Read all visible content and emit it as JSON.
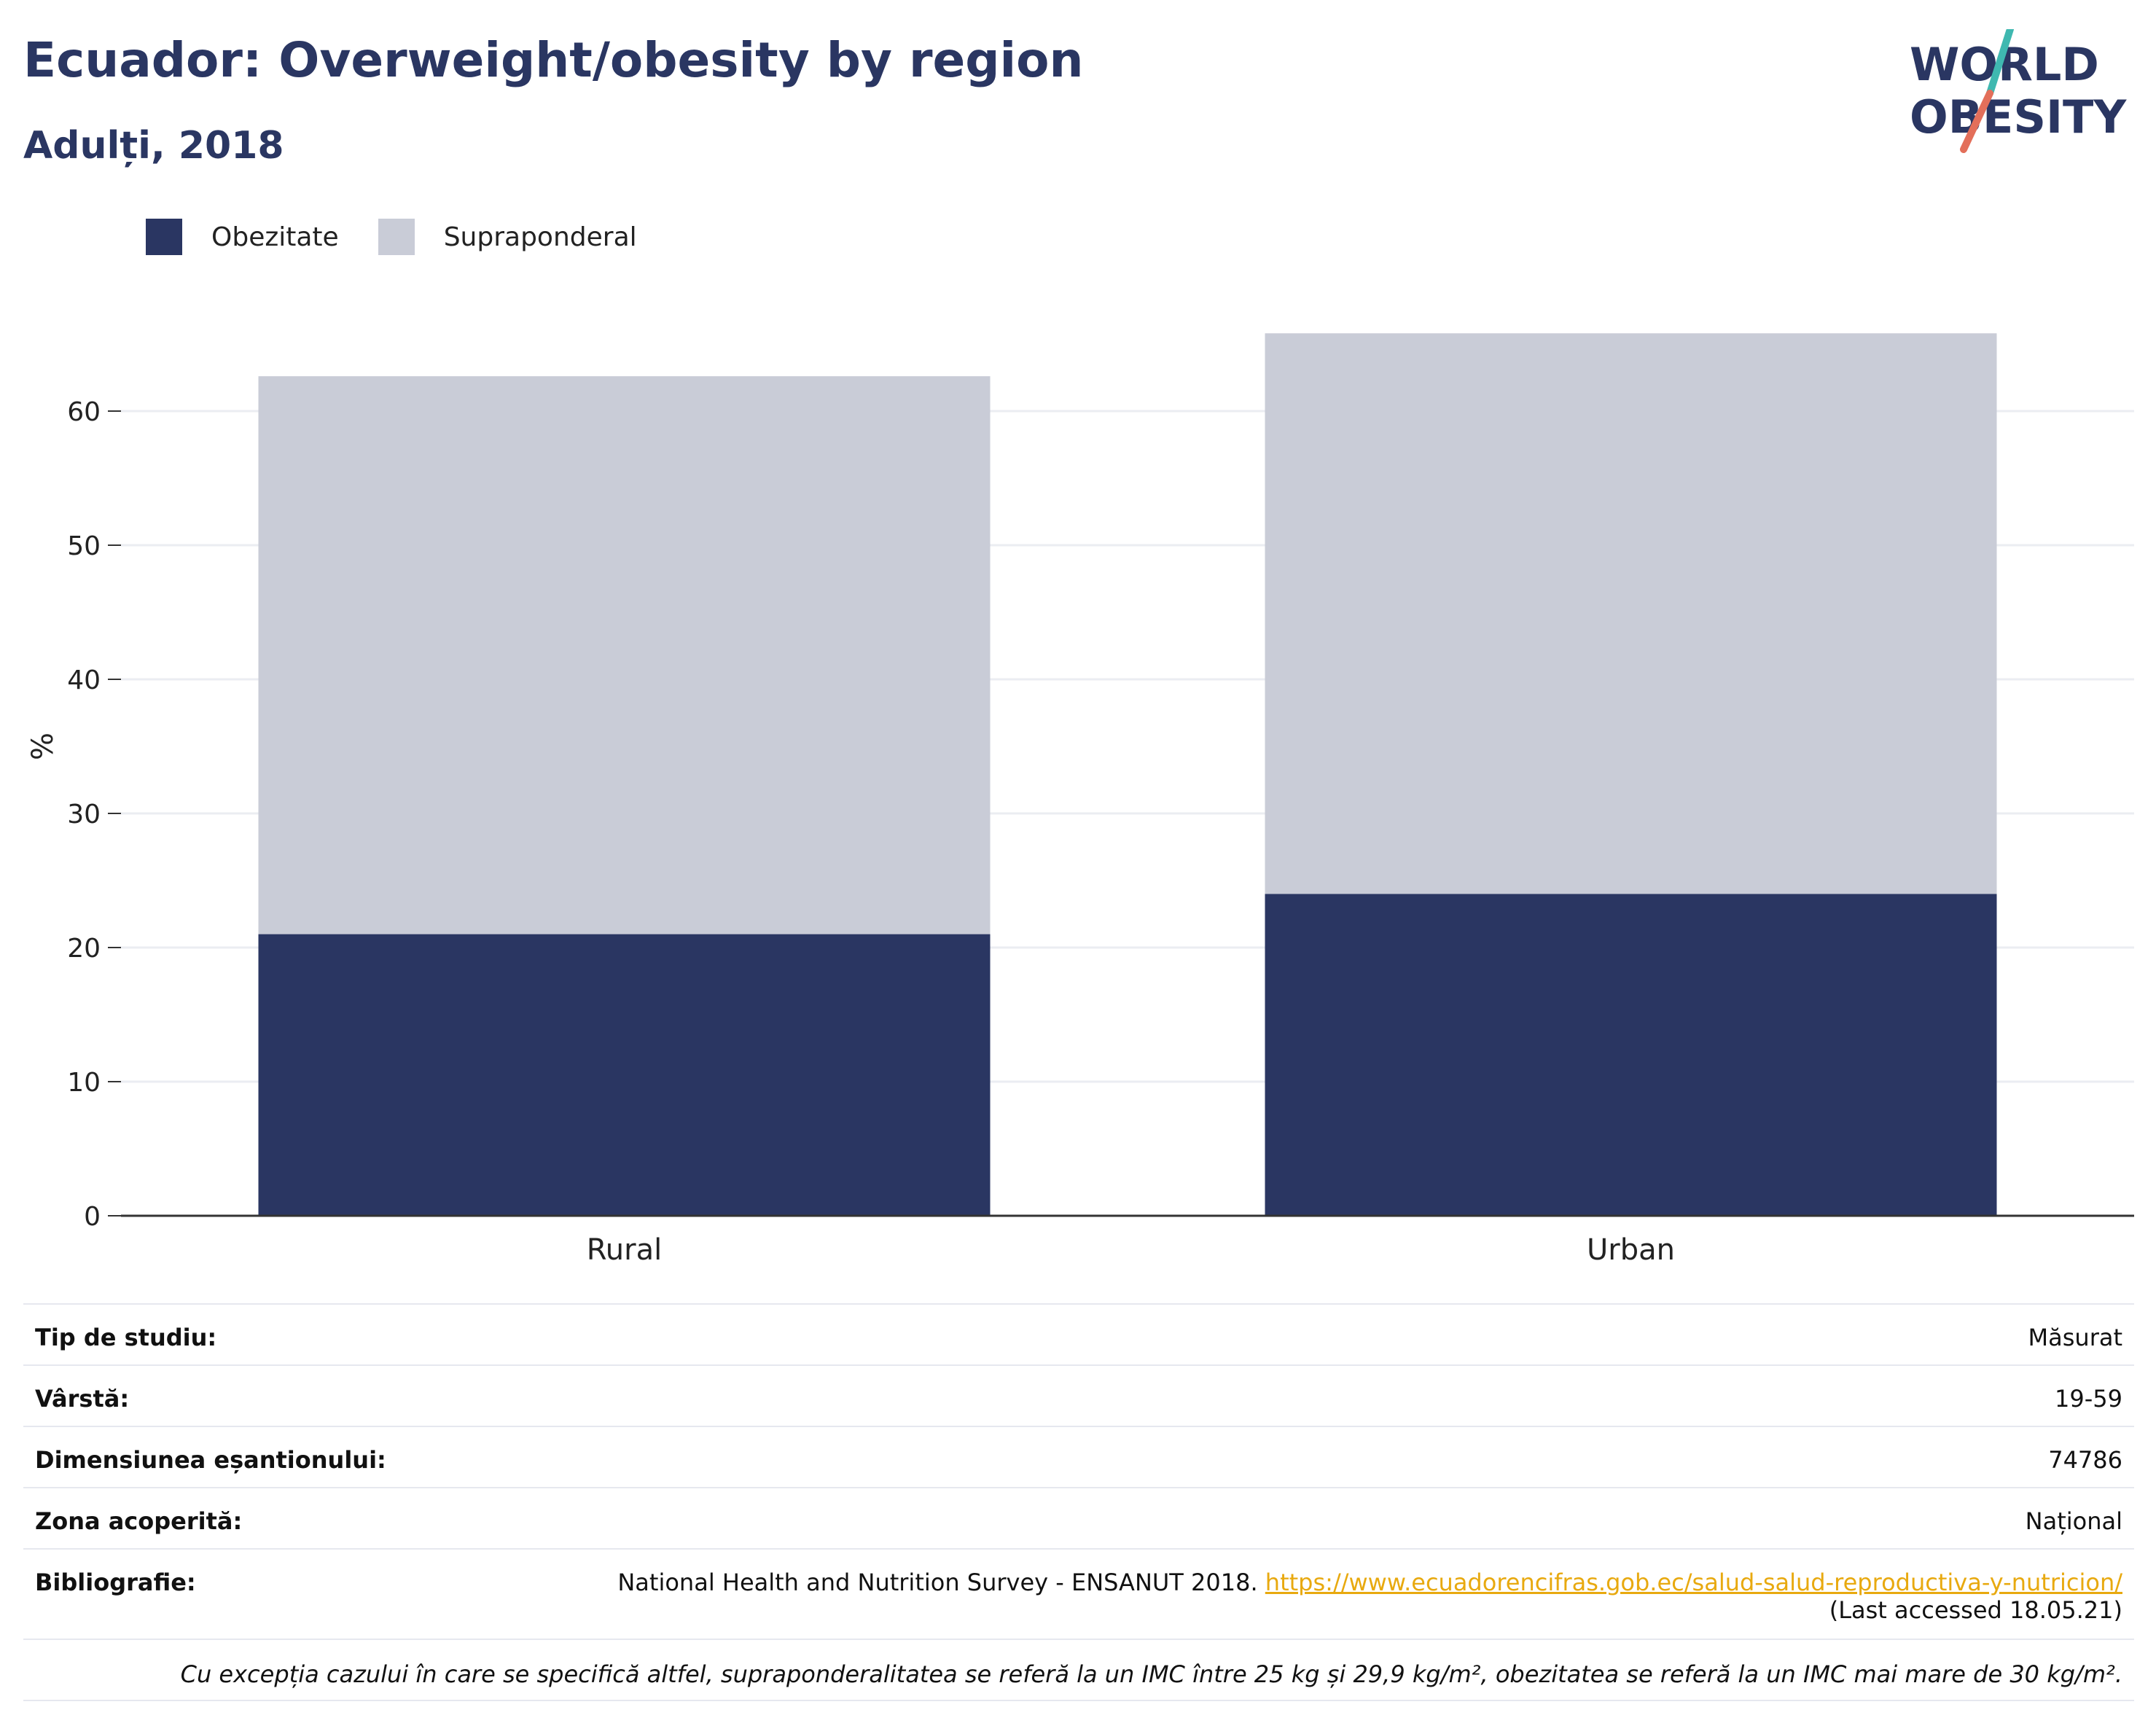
{
  "header": {
    "title": "Ecuador: Overweight/obesity by region",
    "subtitle": "Adulți, 2018"
  },
  "logo": {
    "line1": "WORLD",
    "line2": "OBESITY"
  },
  "colors": {
    "obesity": "#2a3662",
    "overweight": "#c9ccd7",
    "logo_teal": "#3fb8b0",
    "logo_coral": "#e36f5a",
    "link": "#e8a90f"
  },
  "chart_data": {
    "type": "bar",
    "stacked": true,
    "categories": [
      "Rural",
      "Urban"
    ],
    "series": [
      {
        "name": "Obezitate",
        "values": [
          21,
          24
        ]
      },
      {
        "name": "Supraponderal",
        "values": [
          41.6,
          41.8
        ]
      }
    ],
    "ylabel": "%",
    "ylim": [
      0,
      70
    ],
    "yticks": [
      0,
      10,
      20,
      30,
      40,
      50,
      60
    ],
    "grid": true,
    "legend": "top-left"
  },
  "info": {
    "rows": [
      {
        "key": "Tip de studiu:",
        "value": "Măsurat"
      },
      {
        "key": "Vârstă:",
        "value": "19-59"
      },
      {
        "key": "Dimensiunea eșantionului:",
        "value": "74786"
      },
      {
        "key": "Zona acoperită:",
        "value": "Național"
      }
    ],
    "bibliography": {
      "key": "Bibliografie:",
      "text": "National Health and Nutrition Survey - ENSANUT 2018.",
      "link": "https://www.ecuadorencifras.gob.ec/salud-salud-reproductiva-y-nutricion/",
      "accessed": "(Last accessed 18.05.21)"
    },
    "note": "Cu excepția cazului în care se specifică altfel, supraponderalitatea se referă la un IMC între 25 kg și 29,9 kg/m², obezitatea se referă la un IMC mai mare de 30 kg/m²."
  }
}
